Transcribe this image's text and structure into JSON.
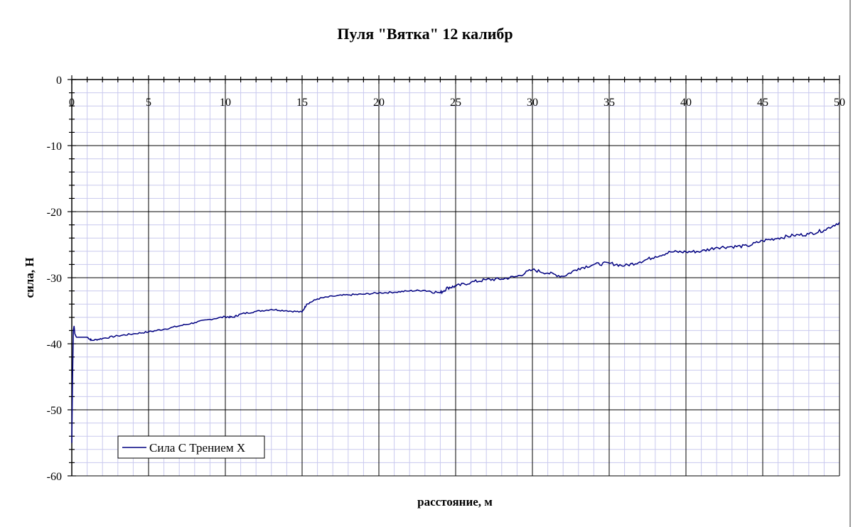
{
  "chart_data": {
    "type": "line",
    "title": "Пуля \"Вятка\" 12 калибр",
    "xlabel": "расстояние, м",
    "ylabel": "сила, Н",
    "xlim": [
      0,
      50
    ],
    "ylim": [
      -60,
      0
    ],
    "x_ticks": [
      0,
      5,
      10,
      15,
      20,
      25,
      30,
      35,
      40,
      45,
      50
    ],
    "y_ticks": [
      0,
      -10,
      -20,
      -30,
      -40,
      -50,
      -60
    ],
    "grid": true,
    "legend_position": "bottom-left",
    "series": [
      {
        "name": "Сила С Трением X",
        "color": "#000080",
        "x": [
          0,
          0.05,
          0.1,
          0.15,
          0.2,
          0.3,
          0.5,
          1,
          1.3,
          2,
          3,
          4,
          5,
          6,
          7,
          8,
          9,
          10,
          10.5,
          11,
          12,
          13,
          14,
          15,
          15.3,
          16,
          17,
          18,
          19,
          20,
          21,
          22,
          23,
          24,
          24.5,
          25,
          26,
          27,
          28,
          29,
          30,
          31,
          32,
          33,
          34,
          35,
          36,
          37,
          38,
          39,
          40,
          41,
          42,
          43,
          44,
          45,
          46,
          47,
          48,
          49,
          50
        ],
        "y": [
          -55,
          -45,
          -38,
          -37.3,
          -38.5,
          -39,
          -39,
          -39,
          -39.5,
          -39.2,
          -38.8,
          -38.5,
          -38.2,
          -37.8,
          -37.3,
          -36.8,
          -36.3,
          -35.9,
          -36,
          -35.5,
          -35.1,
          -34.8,
          -35,
          -35.2,
          -34,
          -33.2,
          -32.8,
          -32.6,
          -32.5,
          -32.3,
          -32.2,
          -32,
          -31.9,
          -32.3,
          -31.5,
          -31.3,
          -30.7,
          -30.3,
          -30.2,
          -29.8,
          -28.8,
          -29.3,
          -29.8,
          -28.6,
          -28,
          -27.8,
          -28.2,
          -27.6,
          -26.8,
          -26.1,
          -26.1,
          -26,
          -25.4,
          -25.3,
          -25.2,
          -24.4,
          -24,
          -23.6,
          -23.4,
          -22.8,
          -21.6
        ]
      }
    ]
  }
}
